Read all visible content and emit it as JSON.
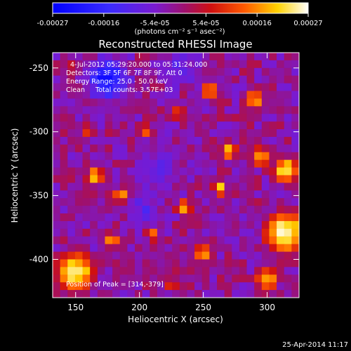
{
  "chart_data": {
    "type": "heatmap",
    "title": "Reconstructed RHESSI Image",
    "xlabel": "Heliocentric X (arcsec)",
    "ylabel": "Heliocentric Y (arcsec)",
    "xlim": [
      132,
      325
    ],
    "ylim": [
      -430,
      -238
    ],
    "xticks": [
      150,
      200,
      250,
      300
    ],
    "yticks": [
      -250,
      -300,
      -350,
      -400
    ],
    "colorbar": {
      "ticks": [
        "-0.00027",
        "-0.00016",
        "-5.4e-05",
        "5.4e-05",
        "0.00016",
        "0.00027"
      ],
      "unit_label": "(photons cm⁻² s⁻¹ asec⁻²)",
      "range": [
        -0.00027,
        0.00027
      ]
    },
    "annotations": [
      "4-Jul-2012 05:29:20.000 to 05:31:24.000",
      "Detectors: 3F 5F 6F 7F 8F 9F, Att 0",
      "Energy Range: 25.0 - 50.0 keV",
      "Clean     Total counts: 3.57E+03"
    ],
    "peak_label": "Position of Peak = [314,-379]",
    "grid": false,
    "colormap": "rainbow-blue-purple-red-yellow-white",
    "intensity_grid": {
      "cols": 33,
      "rows": 32,
      "description": "normalized intensity 0..1 (0=blue, 1=white)",
      "peaks": [
        {
          "x": 314,
          "y": -379,
          "level": 1.0,
          "radius": 22
        },
        {
          "x": 315,
          "y": -330,
          "level": 0.95,
          "radius": 14
        },
        {
          "x": 270,
          "y": -315,
          "level": 0.9,
          "radius": 9
        },
        {
          "x": 295,
          "y": -320,
          "level": 0.85,
          "radius": 12
        },
        {
          "x": 263,
          "y": -345,
          "level": 0.9,
          "radius": 8
        },
        {
          "x": 165,
          "y": -335,
          "level": 0.9,
          "radius": 10
        },
        {
          "x": 185,
          "y": -350,
          "level": 0.85,
          "radius": 9
        },
        {
          "x": 150,
          "y": -410,
          "level": 0.95,
          "radius": 22
        },
        {
          "x": 178,
          "y": -385,
          "level": 0.8,
          "radius": 10
        },
        {
          "x": 255,
          "y": -268,
          "level": 0.8,
          "radius": 10
        },
        {
          "x": 230,
          "y": -285,
          "level": 0.75,
          "radius": 9
        },
        {
          "x": 290,
          "y": -275,
          "level": 0.85,
          "radius": 11
        },
        {
          "x": 205,
          "y": -300,
          "level": 0.8,
          "radius": 9
        },
        {
          "x": 235,
          "y": -360,
          "level": 0.85,
          "radius": 10
        },
        {
          "x": 250,
          "y": -395,
          "level": 0.8,
          "radius": 12
        },
        {
          "x": 210,
          "y": -380,
          "level": 0.75,
          "radius": 9
        },
        {
          "x": 160,
          "y": -300,
          "level": 0.7,
          "radius": 10
        },
        {
          "x": 300,
          "y": -415,
          "level": 0.85,
          "radius": 14
        },
        {
          "x": 225,
          "y": -420,
          "level": 0.7,
          "radius": 10
        },
        {
          "x": 145,
          "y": -250,
          "level": 0.7,
          "radius": 8
        }
      ],
      "troughs": [
        {
          "x": 175,
          "y": -258,
          "level": 0.0,
          "radius": 14
        },
        {
          "x": 215,
          "y": -330,
          "level": 0.3,
          "radius": 18
        },
        {
          "x": 205,
          "y": -360,
          "level": 0.25,
          "radius": 10
        },
        {
          "x": 230,
          "y": -250,
          "level": 0.25,
          "radius": 12
        }
      ]
    }
  },
  "footer": {
    "date": "25-Apr-2014 11:17"
  }
}
